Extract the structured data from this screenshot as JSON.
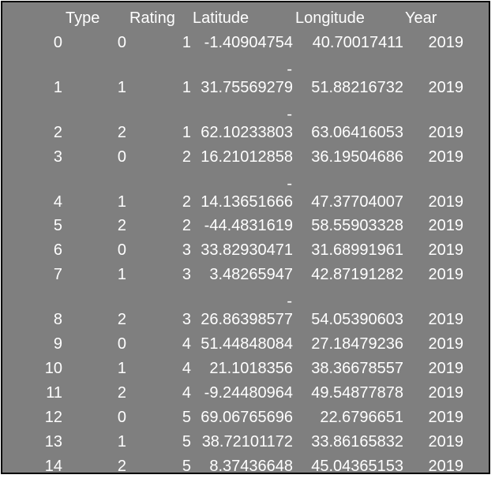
{
  "table": {
    "headers": [
      "Type",
      "Rating",
      "Latitude",
      "Longitude",
      "Year"
    ],
    "rows": [
      {
        "index": "0",
        "type": "0",
        "rating": "1",
        "lat_minus": "",
        "latitude": "-1.40904754",
        "longitude": "40.70017411",
        "year": "2019"
      },
      {
        "index": "1",
        "type": "1",
        "rating": "1",
        "lat_minus": "-",
        "latitude": "31.75569279",
        "longitude": "51.88216732",
        "year": "2019"
      },
      {
        "index": "2",
        "type": "2",
        "rating": "1",
        "lat_minus": "-",
        "latitude": "62.10233803",
        "longitude": "63.06416053",
        "year": "2019"
      },
      {
        "index": "3",
        "type": "0",
        "rating": "2",
        "lat_minus": "",
        "latitude": "16.21012858",
        "longitude": "36.19504686",
        "year": "2019"
      },
      {
        "index": "4",
        "type": "1",
        "rating": "2",
        "lat_minus": "-",
        "latitude": "14.13651666",
        "longitude": "47.37704007",
        "year": "2019"
      },
      {
        "index": "5",
        "type": "2",
        "rating": "2",
        "lat_minus": "",
        "latitude": "-44.4831619",
        "longitude": "58.55903328",
        "year": "2019"
      },
      {
        "index": "6",
        "type": "0",
        "rating": "3",
        "lat_minus": "",
        "latitude": "33.82930471",
        "longitude": "31.68991961",
        "year": "2019"
      },
      {
        "index": "7",
        "type": "1",
        "rating": "3",
        "lat_minus": "",
        "latitude": "3.48265947",
        "longitude": "42.87191282",
        "year": "2019"
      },
      {
        "index": "8",
        "type": "2",
        "rating": "3",
        "lat_minus": "-",
        "latitude": "26.86398577",
        "longitude": "54.05390603",
        "year": "2019"
      },
      {
        "index": "9",
        "type": "0",
        "rating": "4",
        "lat_minus": "",
        "latitude": "51.44848084",
        "longitude": "27.18479236",
        "year": "2019"
      },
      {
        "index": "10",
        "type": "1",
        "rating": "4",
        "lat_minus": "",
        "latitude": "21.1018356",
        "longitude": "38.36678557",
        "year": "2019"
      },
      {
        "index": "11",
        "type": "2",
        "rating": "4",
        "lat_minus": "",
        "latitude": "-9.24480964",
        "longitude": "49.54877878",
        "year": "2019"
      },
      {
        "index": "12",
        "type": "0",
        "rating": "5",
        "lat_minus": "",
        "latitude": "69.06765696",
        "longitude": "22.6796651",
        "year": "2019"
      },
      {
        "index": "13",
        "type": "1",
        "rating": "5",
        "lat_minus": "",
        "latitude": "38.72101172",
        "longitude": "33.86165832",
        "year": "2019"
      },
      {
        "index": "14",
        "type": "2",
        "rating": "5",
        "lat_minus": "",
        "latitude": "8.37436648",
        "longitude": "45.04365153",
        "year": "2019"
      }
    ]
  }
}
